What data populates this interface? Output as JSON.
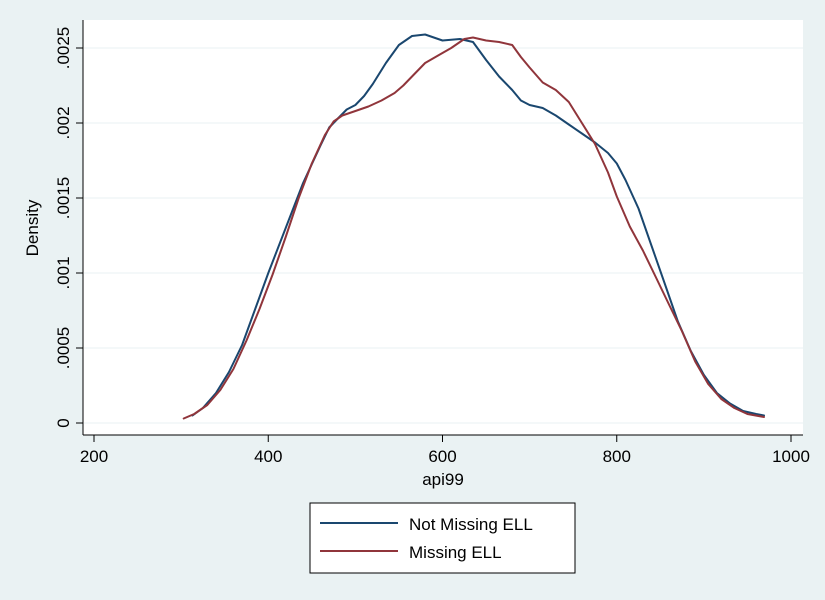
{
  "chart_data": {
    "type": "line",
    "xlabel": "api99",
    "ylabel": "Density",
    "xlim": [
      200,
      1000
    ],
    "ylim": [
      0,
      0.0025
    ],
    "x_ticks": [
      {
        "value": 200,
        "label": "200"
      },
      {
        "value": 400,
        "label": "400"
      },
      {
        "value": 600,
        "label": "600"
      },
      {
        "value": 800,
        "label": "800"
      },
      {
        "value": 1000,
        "label": "1000"
      }
    ],
    "y_ticks": [
      {
        "value": 0,
        "label": "0"
      },
      {
        "value": 0.0005,
        "label": ".0005"
      },
      {
        "value": 0.001,
        "label": ".001"
      },
      {
        "value": 0.0015,
        "label": ".0015"
      },
      {
        "value": 0.002,
        "label": ".002"
      },
      {
        "value": 0.0025,
        "label": ".0025"
      }
    ],
    "grid": true,
    "legend_position": "bottom",
    "series": [
      {
        "name": "Not Missing ELL",
        "color": "#1a476f",
        "x": [
          313,
          325,
          340,
          355,
          370,
          385,
          400,
          420,
          440,
          460,
          470,
          480,
          490,
          500,
          510,
          520,
          535,
          550,
          565,
          580,
          600,
          620,
          635,
          650,
          665,
          680,
          690,
          700,
          715,
          730,
          745,
          760,
          775,
          790,
          800,
          810,
          825,
          840,
          855,
          870,
          885,
          900,
          915,
          930,
          945,
          960,
          969
        ],
        "y": [
          5e-05,
          0.0001,
          0.0002,
          0.00034,
          0.00052,
          0.00076,
          0.001,
          0.0013,
          0.0016,
          0.00185,
          0.00197,
          0.00203,
          0.00209,
          0.00212,
          0.00218,
          0.00226,
          0.0024,
          0.00252,
          0.00258,
          0.00259,
          0.00255,
          0.00256,
          0.00254,
          0.00242,
          0.00231,
          0.00222,
          0.00215,
          0.00212,
          0.0021,
          0.00205,
          0.00199,
          0.00193,
          0.00187,
          0.0018,
          0.00173,
          0.00162,
          0.00143,
          0.00118,
          0.00093,
          0.00068,
          0.00048,
          0.00032,
          0.0002,
          0.00013,
          8e-05,
          6e-05,
          5e-05
        ]
      },
      {
        "name": "Missing ELL",
        "color": "#90353b",
        "x": [
          303,
          315,
          330,
          345,
          360,
          375,
          390,
          405,
          420,
          435,
          450,
          465,
          475,
          485,
          500,
          515,
          530,
          545,
          555,
          565,
          580,
          595,
          610,
          625,
          635,
          650,
          665,
          680,
          690,
          700,
          715,
          730,
          745,
          760,
          775,
          790,
          800,
          815,
          830,
          845,
          860,
          875,
          890,
          905,
          920,
          935,
          950,
          969
        ],
        "y": [
          3e-05,
          6e-05,
          0.00012,
          0.00022,
          0.00036,
          0.00055,
          0.00076,
          0.00099,
          0.00124,
          0.0015,
          0.00173,
          0.00192,
          0.00201,
          0.00205,
          0.00208,
          0.00211,
          0.00215,
          0.0022,
          0.00225,
          0.00231,
          0.0024,
          0.00245,
          0.0025,
          0.00256,
          0.00257,
          0.00255,
          0.00254,
          0.00252,
          0.00244,
          0.00237,
          0.00227,
          0.00222,
          0.00214,
          0.002,
          0.00186,
          0.00167,
          0.00151,
          0.00131,
          0.00115,
          0.00097,
          0.00079,
          0.00061,
          0.00041,
          0.00026,
          0.00016,
          0.0001,
          6e-05,
          4e-05
        ]
      }
    ]
  }
}
